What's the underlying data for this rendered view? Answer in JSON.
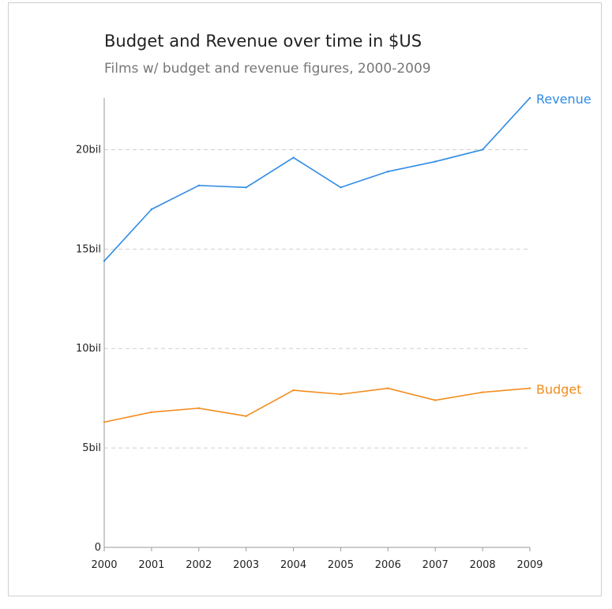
{
  "chart_data": {
    "type": "line",
    "title": "Budget and Revenue over time in $US",
    "subtitle": "Films w/ budget and revenue figures, 2000-2009",
    "x": [
      2000,
      2001,
      2002,
      2003,
      2004,
      2005,
      2006,
      2007,
      2008,
      2009
    ],
    "x_tick_labels": [
      "2000",
      "2001",
      "2002",
      "2003",
      "2004",
      "2005",
      "2006",
      "2007",
      "2008",
      "2009"
    ],
    "y_ticks": [
      0,
      5,
      10,
      15,
      20
    ],
    "y_tick_labels": [
      "0",
      "5bil",
      "10bil",
      "15bil",
      "20bil"
    ],
    "ylim": [
      0,
      22.6
    ],
    "grid": "horizontal dashed",
    "series": [
      {
        "name": "Revenue",
        "color": "#2f8be6",
        "values": [
          14.4,
          17.0,
          18.2,
          18.1,
          19.6,
          18.1,
          18.9,
          19.4,
          20.0,
          22.6
        ]
      },
      {
        "name": "Budget",
        "color": "#f28c1e",
        "values": [
          6.3,
          6.8,
          7.0,
          6.6,
          7.9,
          7.7,
          8.0,
          7.4,
          7.8,
          8.0
        ]
      }
    ]
  }
}
